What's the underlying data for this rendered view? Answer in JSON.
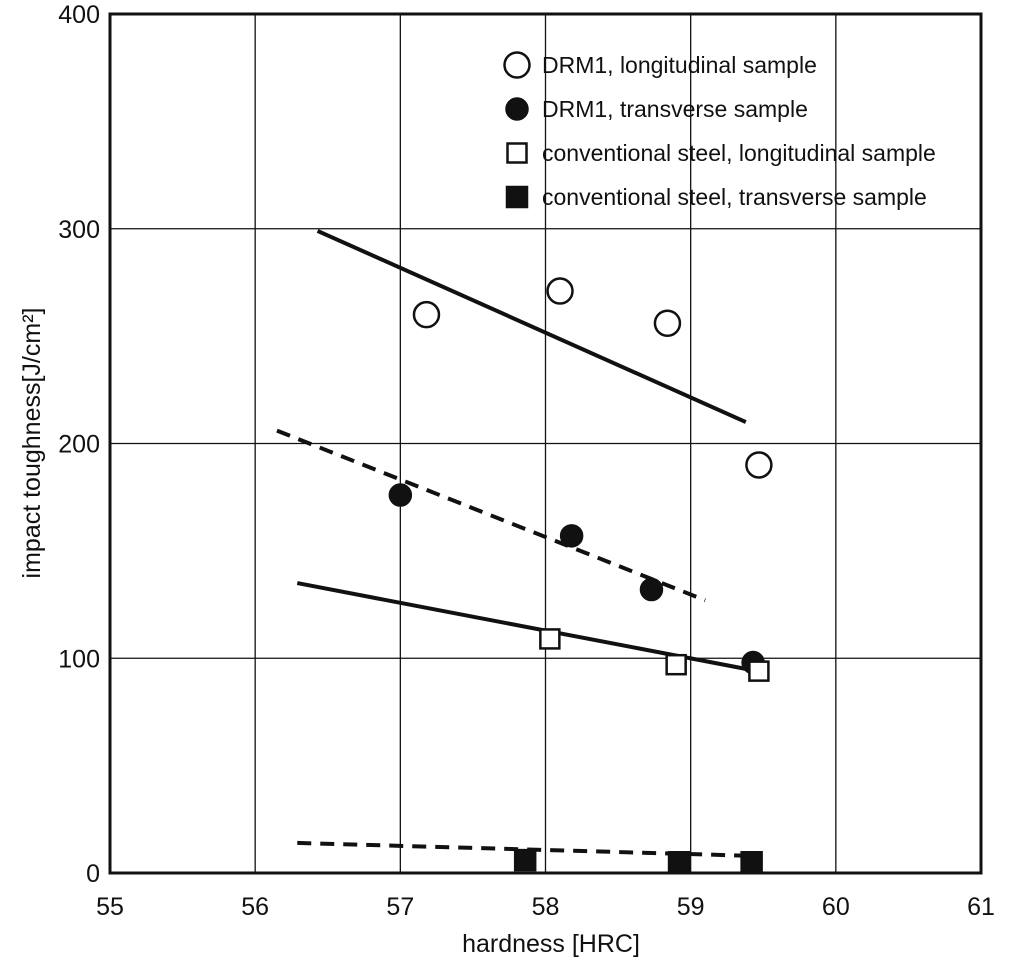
{
  "chart_data": {
    "type": "scatter",
    "title": "",
    "xlabel": "hardness [HRC]",
    "ylabel": "impact toughness[J/cm²]",
    "xlim": [
      55,
      61
    ],
    "ylim": [
      0,
      400
    ],
    "xticks": [
      55,
      56,
      57,
      58,
      59,
      60,
      61
    ],
    "yticks": [
      0,
      100,
      200,
      300,
      400
    ],
    "grid": true,
    "legend_position": "top-right",
    "series": [
      {
        "name": "DRM1, longitudinal sample",
        "marker": "circle-open",
        "points": [
          [
            57.18,
            260
          ],
          [
            58.1,
            271
          ],
          [
            58.84,
            256
          ],
          [
            59.47,
            190
          ]
        ],
        "trendline": {
          "style": "solid",
          "x": [
            56.43,
            59.38
          ],
          "y": [
            299,
            210
          ]
        }
      },
      {
        "name": "DRM1, transverse sample",
        "marker": "circle-filled",
        "points": [
          [
            57.0,
            176
          ],
          [
            58.18,
            157
          ],
          [
            58.73,
            132
          ],
          [
            59.43,
            98
          ]
        ],
        "trendline": {
          "style": "dashed",
          "x": [
            56.15,
            59.1
          ],
          "y": [
            206,
            127
          ]
        }
      },
      {
        "name": "conventional steel, longitudinal sample",
        "marker": "square-open",
        "points": [
          [
            58.03,
            109
          ],
          [
            58.9,
            97
          ],
          [
            59.47,
            94
          ]
        ],
        "trendline": {
          "style": "solid",
          "x": [
            56.29,
            59.46
          ],
          "y": [
            135,
            94
          ]
        }
      },
      {
        "name": "conventional steel, transverse sample",
        "marker": "square-filled",
        "points": [
          [
            57.86,
            6
          ],
          [
            58.92,
            5
          ],
          [
            59.42,
            5
          ]
        ],
        "trendline": {
          "style": "dashed",
          "x": [
            56.29,
            59.42
          ],
          "y": [
            14,
            8
          ]
        }
      }
    ]
  }
}
